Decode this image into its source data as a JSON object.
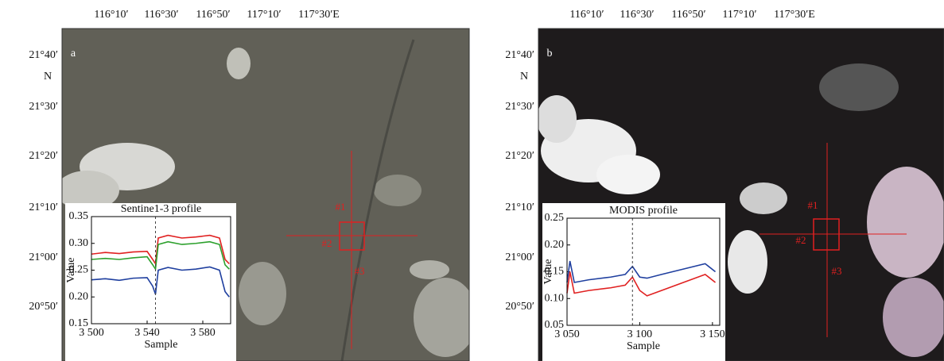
{
  "panels": [
    {
      "label": "a",
      "lon_ticks": [
        "116°10′",
        "116°30′",
        "116°50′",
        "117°10′",
        "117°30′E"
      ],
      "lat_ticks": [
        "21°40′",
        "21°30′",
        "21°20′",
        "21°10′",
        "21°00′",
        "20°50′"
      ],
      "lat_unit": "N",
      "markers": [
        "#1",
        "#2",
        "#3"
      ],
      "chart_data": {
        "type": "line",
        "title": "Sentine1-3 profile",
        "x_label": "Sample",
        "y_label": "Value",
        "x": [
          3500,
          3510,
          3520,
          3530,
          3540,
          3544,
          3546,
          3548,
          3555,
          3565,
          3575,
          3585,
          3592,
          3596,
          3599
        ],
        "series": [
          {
            "color": "#e02020",
            "values": [
              0.28,
              0.283,
              0.281,
              0.284,
              0.285,
              0.27,
              0.262,
              0.31,
              0.315,
              0.31,
              0.312,
              0.315,
              0.31,
              0.27,
              0.262
            ]
          },
          {
            "color": "#2ca02c",
            "values": [
              0.27,
              0.272,
              0.27,
              0.273,
              0.275,
              0.26,
              0.252,
              0.298,
              0.303,
              0.298,
              0.3,
              0.303,
              0.298,
              0.26,
              0.252
            ]
          },
          {
            "color": "#1f3f9f",
            "values": [
              0.232,
              0.234,
              0.231,
              0.235,
              0.236,
              0.22,
              0.205,
              0.25,
              0.255,
              0.25,
              0.252,
              0.256,
              0.25,
              0.21,
              0.2
            ]
          }
        ],
        "vline": 3546,
        "xlim": [
          3500,
          3600
        ],
        "ylim": [
          0.15,
          0.35
        ],
        "xticks": [
          {
            "value": 3500,
            "label": "3 500"
          },
          {
            "value": 3540,
            "label": "3 540"
          },
          {
            "value": 3580,
            "label": "3 580"
          }
        ],
        "yticks": [
          0.15,
          {
            "value": 0.2,
            "label": "0.20"
          },
          0.25,
          {
            "value": 0.3,
            "label": "0.30"
          },
          0.35
        ]
      }
    },
    {
      "label": "b",
      "lon_ticks": [
        "116°10′",
        "116°30′",
        "116°50′",
        "117°10′",
        "117°30′E"
      ],
      "lat_ticks": [
        "21°40′",
        "21°30′",
        "21°20′",
        "21°10′",
        "21°00′",
        "20°50′"
      ],
      "lat_unit": "N",
      "markers": [
        "#1",
        "#2",
        "#3"
      ],
      "chart_data": {
        "type": "line",
        "title": "MODIS profile",
        "x_label": "Sample",
        "y_label": "Value",
        "x": [
          3050,
          3052,
          3055,
          3065,
          3080,
          3090,
          3095,
          3100,
          3105,
          3115,
          3130,
          3145,
          3152
        ],
        "series": [
          {
            "color": "#1f3f9f",
            "values": [
              0.13,
              0.17,
              0.13,
              0.135,
              0.14,
              0.145,
              0.16,
              0.14,
              0.138,
              0.145,
              0.155,
              0.165,
              0.15
            ]
          },
          {
            "color": "#e02020",
            "values": [
              0.11,
              0.15,
              0.11,
              0.115,
              0.12,
              0.125,
              0.14,
              0.115,
              0.105,
              0.115,
              0.13,
              0.145,
              0.13
            ]
          }
        ],
        "vline": 3095,
        "xlim": [
          3050,
          3155
        ],
        "ylim": [
          0.05,
          0.25
        ],
        "xticks": [
          {
            "value": 3050,
            "label": "3 050"
          },
          {
            "value": 3100,
            "label": "3 100"
          },
          {
            "value": 3150,
            "label": "3 150"
          }
        ],
        "yticks": [
          0.05,
          {
            "value": 0.1,
            "label": "0.10"
          },
          0.15,
          {
            "value": 0.2,
            "label": "0.20"
          },
          0.25
        ]
      }
    }
  ]
}
